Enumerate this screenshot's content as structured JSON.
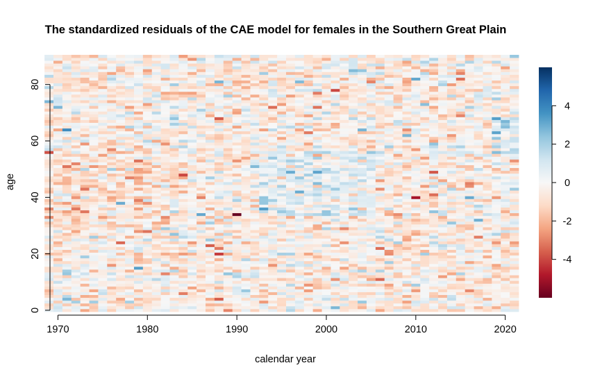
{
  "chart_data": {
    "type": "heatmap",
    "title": "The standardized residuals of the CAE model for females in the Southern Great Plain",
    "xlabel": "calendar year",
    "ylabel": "age",
    "x_range": [
      1969,
      2021
    ],
    "y_range": [
      0,
      90
    ],
    "xlim": [
      1969.5,
      2021.5
    ],
    "ylim": [
      -0.5,
      90.5
    ],
    "x_ticks": [
      1970,
      1980,
      1990,
      2000,
      2010,
      2020
    ],
    "y_ticks": [
      0,
      20,
      40,
      60,
      80
    ],
    "colorbar": {
      "range": [
        -6,
        6
      ],
      "ticks": [
        -4,
        -2,
        0,
        2,
        4
      ],
      "palette": [
        "#67001f",
        "#b2182b",
        "#d6604d",
        "#f4a582",
        "#fddbc7",
        "#f7f7f7",
        "#d1e5f0",
        "#92c5de",
        "#4393c3",
        "#2166ac",
        "#053061"
      ]
    },
    "grid": false,
    "note_values": "Residual matrix (53 years x 91 ages) is noise-like; values are approximated by a seeded pseudo-random field with mean near 0, slight negative bias for ages 30-55 before 1985 and positive bias for ages 35-55 during 1993-2005."
  }
}
